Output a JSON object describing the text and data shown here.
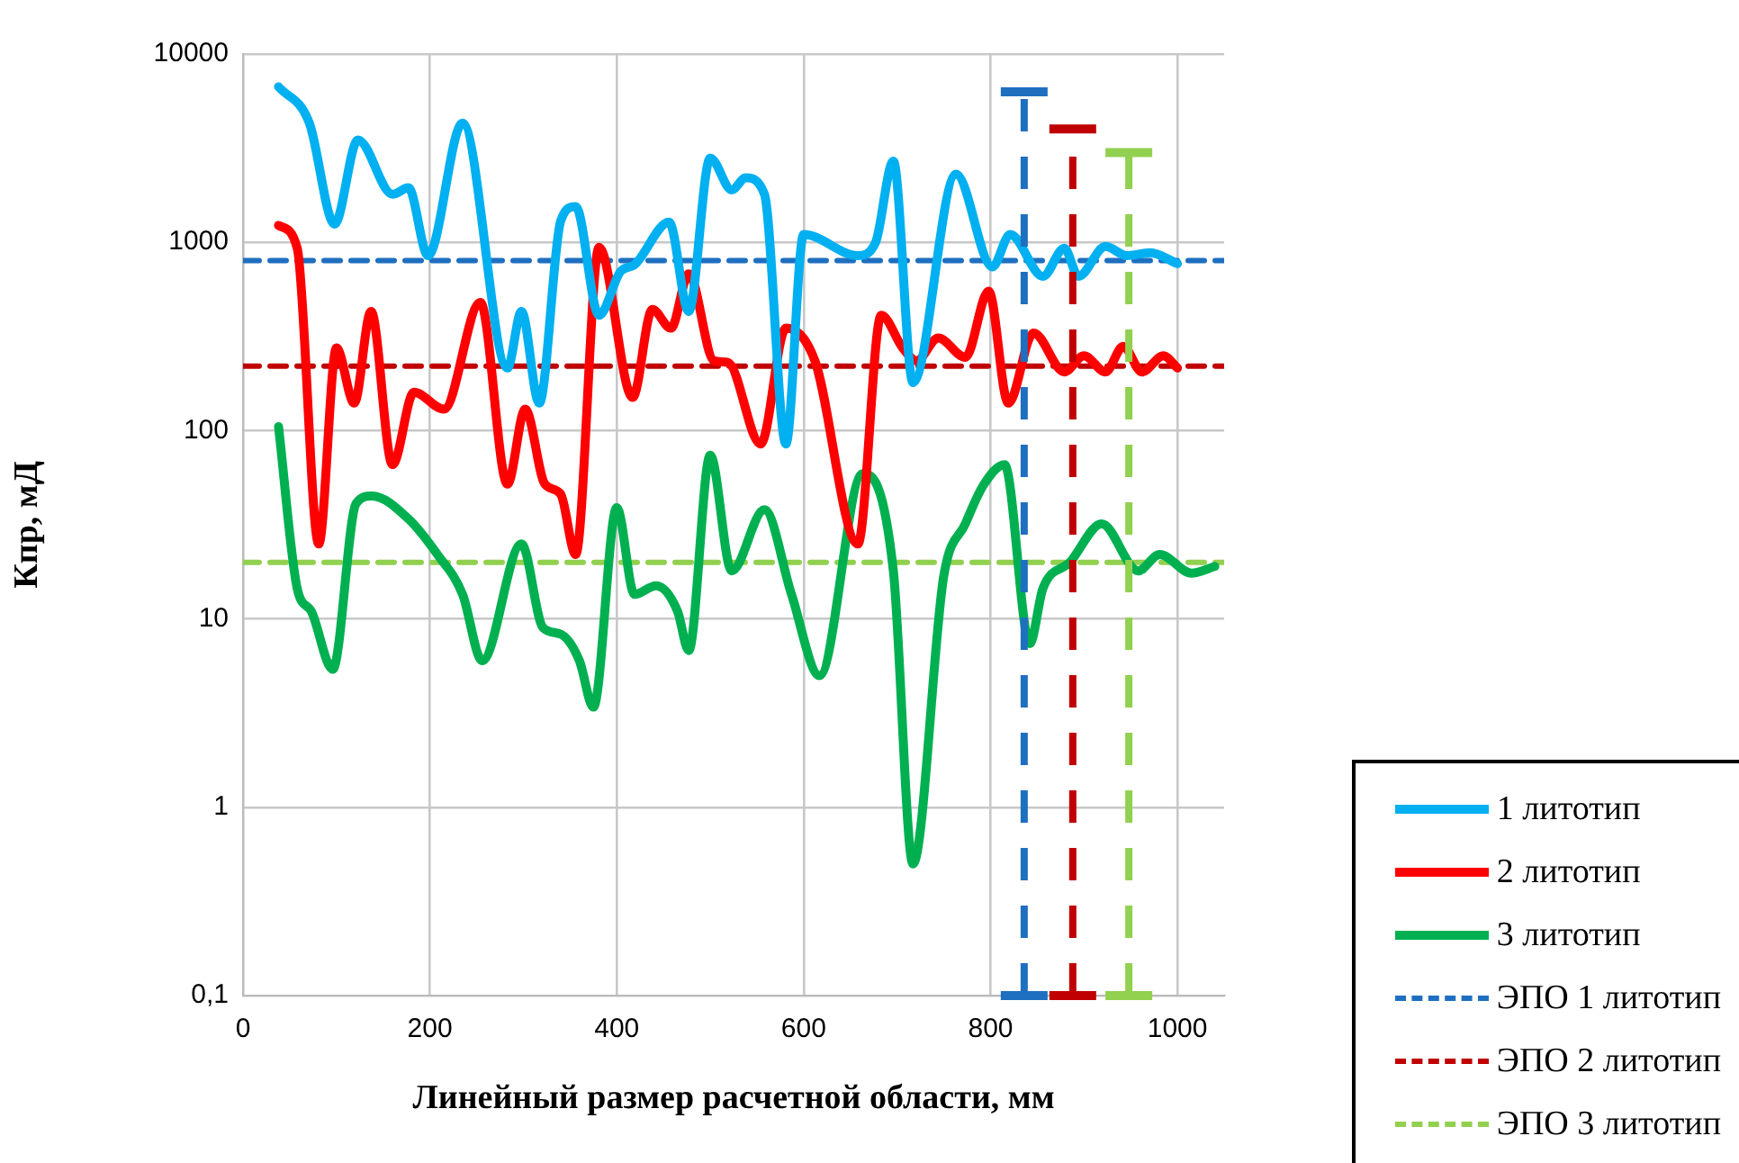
{
  "chart_data": {
    "type": "line",
    "xlabel": "Линейный размер расчетной области, мм",
    "ylabel": "Кпр, мД",
    "log": "y",
    "grid": true,
    "legend": "bottom right",
    "marker": "none",
    "xlim": [
      0,
      1050
    ],
    "xticks": [
      0,
      200,
      400,
      600,
      800,
      1000
    ],
    "ylim": [
      0.1,
      10000
    ],
    "yticks": [
      {
        "value": 0.1,
        "label": "0,1"
      },
      1,
      10,
      100,
      1000,
      10000
    ],
    "series": [
      {
        "name": "1 литотип",
        "color": "#00b0f0",
        "line_style": "solid",
        "x": [
          38,
          71,
          98,
          123,
          160,
          177,
          198,
          235,
          283,
          298,
          317,
          340,
          356,
          381,
          404,
          419,
          456,
          477,
          500,
          523,
          538,
          558,
          581,
          600,
          658,
          677,
          696,
          717,
          763,
          802,
          821,
          856,
          879,
          894,
          923,
          946,
          971,
          1000
        ],
        "values": [
          6700,
          4300,
          1250,
          3500,
          1800,
          1950,
          850,
          4300,
          215,
          430,
          140,
          1300,
          1550,
          410,
          700,
          760,
          1280,
          430,
          2800,
          1900,
          2200,
          1800,
          85,
          1100,
          850,
          1000,
          2700,
          180,
          2300,
          740,
          1100,
          660,
          930,
          660,
          950,
          850,
          880,
          770
        ]
      },
      {
        "name": "2 литотип",
        "color": "#ff0000",
        "line_style": "solid",
        "x": [
          38,
          58,
          81,
          100,
          119,
          137,
          160,
          183,
          215,
          254,
          283,
          302,
          323,
          340,
          356,
          381,
          417,
          438,
          458,
          477,
          504,
          519,
          554,
          581,
          612,
          658,
          683,
          706,
          721,
          744,
          773,
          798,
          819,
          846,
          879,
          900,
          923,
          942,
          962,
          985,
          1000
        ],
        "values": [
          1230,
          930,
          25,
          275,
          140,
          430,
          66,
          160,
          130,
          480,
          52,
          130,
          52,
          46,
          22,
          940,
          150,
          440,
          350,
          680,
          235,
          230,
          85,
          350,
          235,
          25,
          410,
          275,
          235,
          310,
          245,
          550,
          140,
          330,
          205,
          250,
          205,
          280,
          205,
          250,
          215
        ]
      },
      {
        "name": "3 литотип",
        "color": "#00b050",
        "line_style": "solid",
        "x": [
          38,
          58,
          73,
          96,
          121,
          138,
          177,
          208,
          235,
          256,
          298,
          321,
          340,
          360,
          375,
          400,
          419,
          442,
          465,
          477,
          500,
          523,
          558,
          587,
          617,
          663,
          696,
          717,
          750,
          773,
          792,
          815,
          842,
          856,
          885,
          919,
          958,
          981,
          1015,
          1040
        ],
        "values": [
          105,
          14.5,
          11,
          5.4,
          41,
          45,
          34,
          22,
          13.5,
          6,
          25,
          9,
          8.3,
          6,
          3.4,
          39,
          13.5,
          15,
          11,
          6.8,
          74,
          18,
          38,
          13.5,
          5,
          59,
          18,
          0.5,
          17,
          32,
          51,
          66,
          7.4,
          14.5,
          20,
          32,
          18,
          22,
          17.5,
          19
        ]
      },
      {
        "name": "ЭПО 1 литотип",
        "color": "#1f6fc0",
        "line_style": "dashed",
        "x": [
          0,
          836,
          1050
        ],
        "values": [
          800,
          800,
          800
        ],
        "errors": [
          null,
          [
            0.1,
            6300
          ],
          null
        ]
      },
      {
        "name": "ЭПО 2 литотип",
        "color": "#c00000",
        "line_style": "dashed",
        "x": [
          0,
          888,
          1050
        ],
        "values": [
          220,
          220,
          220
        ],
        "errors": [
          null,
          [
            0.1,
            4000
          ],
          null
        ]
      },
      {
        "name": "ЭПО 3 литотип",
        "color": "#92d050",
        "line_style": "dashed",
        "x": [
          0,
          948,
          1050
        ],
        "values": [
          20,
          20,
          20
        ],
        "errors": [
          null,
          [
            0.1,
            3000
          ],
          null
        ]
      }
    ]
  }
}
